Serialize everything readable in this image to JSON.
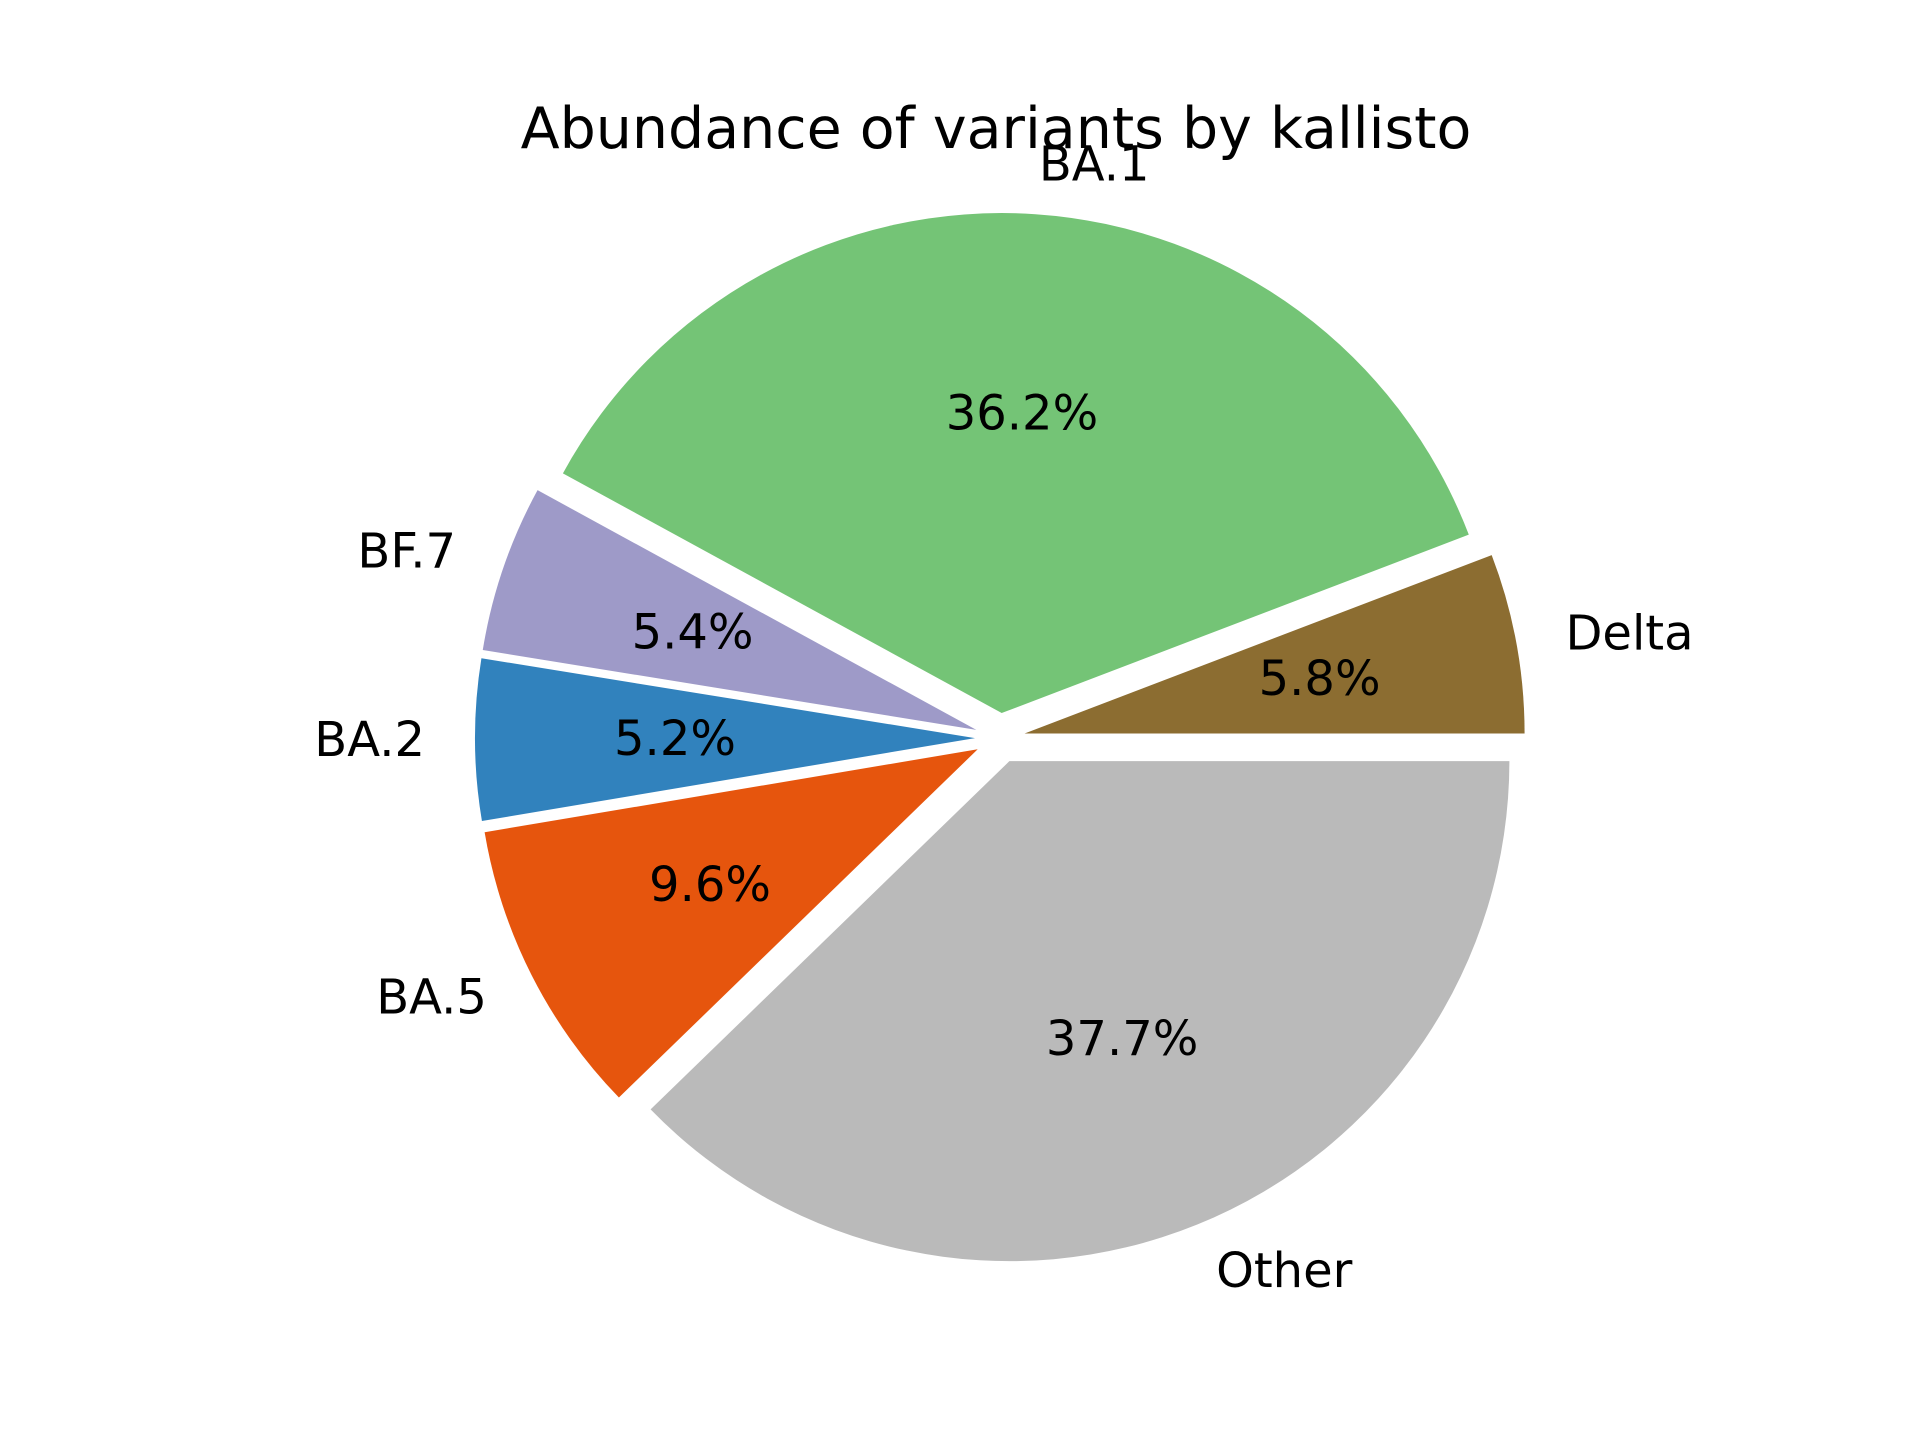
{
  "chart_data": {
    "type": "pie",
    "title": "Abundance of variants by kallisto",
    "start_angle_deg": 0,
    "direction": "counterclockwise",
    "slices": [
      {
        "label": "Delta",
        "value": 5.8,
        "pct_label": "5.8%",
        "color": "#8c6d31"
      },
      {
        "label": "BA.1",
        "value": 36.2,
        "pct_label": "36.2%",
        "color": "#74c476"
      },
      {
        "label": "BF.7",
        "value": 5.4,
        "pct_label": "5.4%",
        "color": "#9e9ac8"
      },
      {
        "label": "BA.2",
        "value": 5.2,
        "pct_label": "5.2%",
        "color": "#3182bd"
      },
      {
        "label": "BA.5",
        "value": 9.6,
        "pct_label": "9.6%",
        "color": "#e6550d"
      },
      {
        "label": "Other",
        "value": 37.7,
        "pct_label": "37.7%",
        "color": "#bababa"
      }
    ]
  }
}
